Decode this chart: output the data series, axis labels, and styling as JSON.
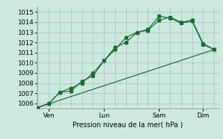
{
  "title": "",
  "xlabel": "Pression niveau de la mer( hPa )",
  "ylim": [
    1005.5,
    1015.5
  ],
  "yticks": [
    1006,
    1007,
    1008,
    1009,
    1010,
    1011,
    1012,
    1013,
    1014,
    1015
  ],
  "bg_color": "#cce8e0",
  "grid_color": "#aaccbb",
  "line_color": "#1a6b30",
  "day_labels": [
    "| Ven",
    "| Lun",
    "| Sam",
    "| Dim"
  ],
  "xtick_positions": [
    0.5,
    3.0,
    5.5,
    7.5
  ],
  "xtick_minor_positions": [
    0,
    0.5,
    1,
    1.5,
    2,
    2.5,
    3,
    3.5,
    4,
    4.5,
    5,
    5.5,
    6,
    6.5,
    7,
    7.5,
    8
  ],
  "line1_x": [
    0,
    0.5,
    1.0,
    1.5,
    2.0,
    2.5,
    3.0,
    3.5,
    4.0,
    4.5,
    5.0,
    5.5,
    6.0,
    6.5,
    7.0,
    7.5,
    8.0
  ],
  "line1_y": [
    1005.6,
    1006.0,
    1007.1,
    1007.2,
    1008.2,
    1008.7,
    1010.2,
    1011.3,
    1012.5,
    1013.0,
    1013.3,
    1014.6,
    1014.4,
    1013.9,
    1014.1,
    1011.8,
    1011.3
  ],
  "line2_x": [
    0,
    0.5,
    1.0,
    1.5,
    2.0,
    2.5,
    3.0,
    3.5,
    4.0,
    4.5,
    5.0,
    5.5,
    6.0,
    6.5,
    7.0,
    7.5,
    8.0
  ],
  "line2_y": [
    1005.6,
    1006.0,
    1007.1,
    1007.5,
    1008.0,
    1009.0,
    1010.2,
    1011.5,
    1012.0,
    1013.0,
    1013.2,
    1014.2,
    1014.5,
    1014.0,
    1014.2,
    1011.9,
    1011.3
  ],
  "line3_x": [
    0,
    8.0
  ],
  "line3_y": [
    1005.6,
    1011.3
  ],
  "xlim": [
    -0.05,
    8.2
  ]
}
